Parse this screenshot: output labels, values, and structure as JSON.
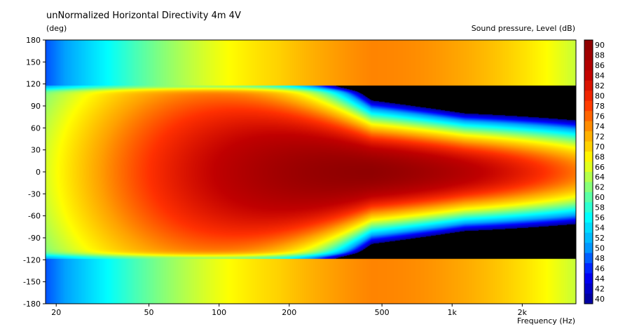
{
  "chart_data": {
    "type": "heatmap",
    "title": "unNormalized Horizontal Directivity 4m 4V",
    "ylabel": "(deg)",
    "xlabel": "Frequency  (Hz)",
    "colorbar_label": "Sound pressure, Level  (dB)",
    "x_scale": "log",
    "xlim": [
      18,
      3400
    ],
    "ylim": [
      -180,
      180
    ],
    "x_ticks": [
      {
        "value": 20,
        "label": "20"
      },
      {
        "value": 50,
        "label": "50"
      },
      {
        "value": 100,
        "label": "100"
      },
      {
        "value": 200,
        "label": "200"
      },
      {
        "value": 500,
        "label": "500"
      },
      {
        "value": 1000,
        "label": "1k"
      },
      {
        "value": 2000,
        "label": "2k"
      }
    ],
    "y_ticks": [
      180,
      150,
      120,
      90,
      60,
      30,
      0,
      -30,
      -60,
      -90,
      -120,
      -150,
      -180
    ],
    "colorbar": {
      "min": 40,
      "max": 91,
      "levels": [
        90,
        88,
        86,
        84,
        82,
        80,
        78,
        76,
        74,
        72,
        70,
        68,
        66,
        64,
        62,
        60,
        58,
        56,
        54,
        52,
        50,
        48,
        46,
        44,
        42,
        40
      ],
      "colors": [
        "#00008f",
        "#0000ff",
        "#00a0ff",
        "#00ffff",
        "#80ff80",
        "#ffff00",
        "#ffa000",
        "#ff3000",
        "#c00000",
        "#900000"
      ]
    },
    "peak": {
      "frequency_hz": 450,
      "angle_deg": 0,
      "level_db": 91
    },
    "below_range_color": "#000000"
  }
}
